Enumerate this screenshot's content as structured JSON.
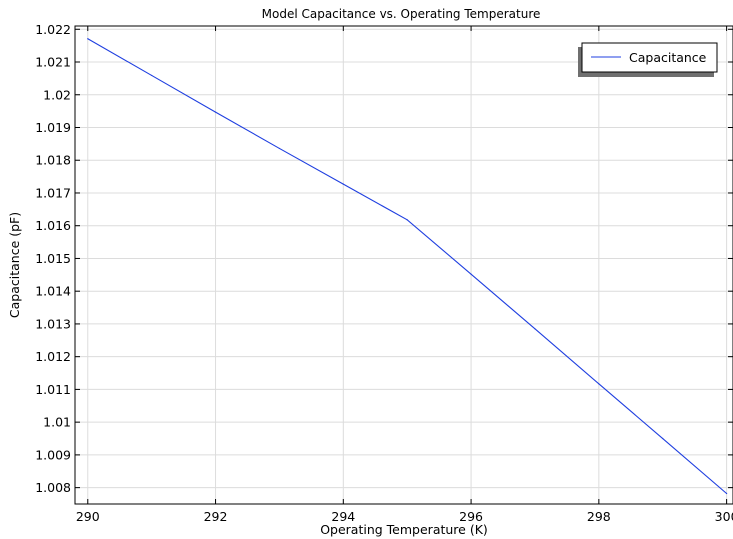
{
  "chart_data": {
    "type": "line",
    "title": "Model Capacitance vs. Operating Temperature",
    "xlabel": "Operating Temperature (K)",
    "ylabel": "Capacitance (pF)",
    "xlim": [
      289.8,
      300.1
    ],
    "ylim": [
      1.0075,
      1.0221
    ],
    "xticks": [
      290,
      292,
      294,
      296,
      298,
      300
    ],
    "xtick_labels": [
      "290",
      "292",
      "294",
      "296",
      "298",
      "300"
    ],
    "yticks": [
      1.008,
      1.009,
      1.01,
      1.011,
      1.012,
      1.013,
      1.014,
      1.015,
      1.016,
      1.017,
      1.018,
      1.019,
      1.02,
      1.021,
      1.022
    ],
    "ytick_labels": [
      "1.008",
      "1.009",
      "1.01",
      "1.011",
      "1.012",
      "1.013",
      "1.014",
      "1.015",
      "1.016",
      "1.017",
      "1.018",
      "1.019",
      "1.02",
      "1.021",
      "1.022"
    ],
    "grid": true,
    "legend_position": "top-right",
    "series": [
      {
        "name": "Capacitance",
        "color": "#1f3fe0",
        "x": [
          290,
          291,
          292,
          293,
          294,
          295,
          296,
          297,
          298,
          299,
          300
        ],
        "y": [
          1.02171,
          1.02059,
          1.01947,
          1.01836,
          1.01727,
          1.01618,
          1.01452,
          1.01285,
          1.01117,
          1.0095,
          1.00782
        ]
      }
    ]
  }
}
